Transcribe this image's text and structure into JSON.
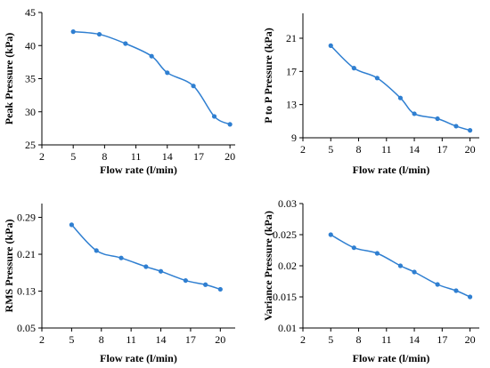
{
  "chart_data": [
    {
      "type": "line",
      "xlabel": "Flow rate (l/min)",
      "ylabel": "Peak Pressure (kPa)",
      "xlim": [
        2,
        20.5
      ],
      "ylim": [
        25,
        45
      ],
      "xticks": [
        2,
        5,
        8,
        11,
        14,
        17,
        20
      ],
      "yticks": [
        25,
        30,
        35,
        40,
        45
      ],
      "ytick_labels": [
        "25",
        "30",
        "35",
        "40",
        "45"
      ],
      "series": [
        {
          "x": [
            5,
            7.5,
            10,
            12.5,
            14,
            16.5,
            18.5,
            20
          ],
          "y": [
            42.1,
            41.7,
            40.3,
            38.4,
            35.9,
            33.9,
            29.3,
            28.1
          ]
        }
      ]
    },
    {
      "type": "line",
      "xlabel": "Flow rate (l/min)",
      "ylabel": "P to P Pressure (kPa)",
      "xlim": [
        2,
        21
      ],
      "ylim": [
        9,
        24
      ],
      "xticks": [
        2,
        5,
        8,
        11,
        14,
        17,
        20
      ],
      "yticks": [
        9,
        13,
        17,
        21
      ],
      "ytick_labels": [
        "9",
        "13",
        "17",
        "21"
      ],
      "series": [
        {
          "x": [
            5,
            7.5,
            10,
            12.5,
            14,
            16.5,
            18.5,
            20
          ],
          "y": [
            20.1,
            17.4,
            16.2,
            13.8,
            11.9,
            11.3,
            10.4,
            9.9
          ]
        }
      ]
    },
    {
      "type": "line",
      "xlabel": "Flow rate (l/min)",
      "ylabel": "RMS Pressure (kPa)",
      "xlim": [
        2,
        21.5
      ],
      "ylim": [
        0.05,
        0.32
      ],
      "xticks": [
        2,
        5,
        8,
        11,
        14,
        17,
        20
      ],
      "yticks": [
        0.05,
        0.13,
        0.21,
        0.29
      ],
      "ytick_labels": [
        "0.05",
        "0.13",
        "0.21",
        "0.29"
      ],
      "series": [
        {
          "x": [
            5,
            7.5,
            10,
            12.5,
            14,
            16.5,
            18.5,
            20
          ],
          "y": [
            0.274,
            0.218,
            0.202,
            0.183,
            0.173,
            0.153,
            0.144,
            0.134
          ]
        }
      ]
    },
    {
      "type": "line",
      "xlabel": "Flow rate (l/min)",
      "ylabel": "Variance  Pressure (kPa)",
      "xlim": [
        2,
        21
      ],
      "ylim": [
        0.01,
        0.03
      ],
      "xticks": [
        2,
        5,
        8,
        11,
        14,
        17,
        20
      ],
      "yticks": [
        0.01,
        0.015,
        0.02,
        0.025,
        0.03
      ],
      "ytick_labels": [
        "0.01",
        "0.015",
        "0.02",
        "0.025",
        "0.03"
      ],
      "series": [
        {
          "x": [
            5,
            7.5,
            10,
            12.5,
            14,
            16.5,
            18.5,
            20
          ],
          "y": [
            0.025,
            0.0229,
            0.022,
            0.02,
            0.019,
            0.017,
            0.016,
            0.015
          ]
        }
      ]
    }
  ]
}
